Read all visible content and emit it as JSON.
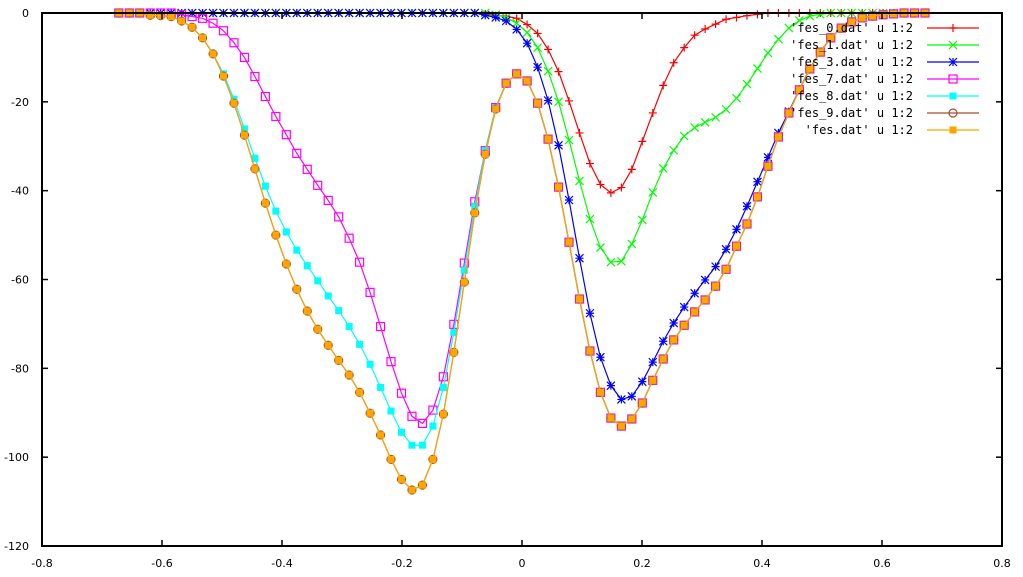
{
  "chart_data": {
    "type": "line",
    "title": "",
    "xlabel": "",
    "ylabel": "",
    "xlim": [
      -0.8,
      0.8
    ],
    "ylim": [
      -120,
      0
    ],
    "xticks": [
      -0.8,
      -0.6,
      -0.4,
      -0.2,
      0,
      0.2,
      0.4,
      0.6,
      0.8
    ],
    "xtick_labels": [
      "-0.8",
      "-0.6",
      "-0.4",
      "-0.2",
      "0",
      "0.2",
      "0.4",
      "0.6",
      "0.8"
    ],
    "yticks": [
      0,
      -20,
      -40,
      -60,
      -80,
      -100,
      -120
    ],
    "ytick_labels": [
      "0",
      "-20",
      "-40",
      "-60",
      "-80",
      "-100",
      "-120"
    ],
    "grid": false,
    "legend_position": "top-right",
    "x_start": -0.672,
    "x_step": 0.01745,
    "series": [
      {
        "name": "'fes_0.dat' u 1:2",
        "color": "#ff0000",
        "marker": "plus",
        "values": [
          0,
          0,
          0,
          0,
          0,
          0,
          0,
          0,
          0,
          0,
          0,
          0,
          0,
          0,
          0,
          0,
          0,
          0,
          0,
          0,
          0,
          0,
          0,
          0,
          0,
          0,
          0,
          0,
          0,
          0,
          0,
          0,
          0,
          0,
          0,
          -0.2,
          -0.6,
          -0.7,
          -1.2,
          -2.6,
          -4.6,
          -8.2,
          -13.2,
          -19.8,
          -27,
          -33.9,
          -38.6,
          -40.5,
          -39.3,
          -35.2,
          -28.9,
          -22.5,
          -16.3,
          -11.2,
          -7.8,
          -5,
          -3.6,
          -2.5,
          -1.4,
          -1,
          -0.6,
          -0.3,
          0,
          0,
          0,
          0,
          0,
          0,
          0,
          0,
          0,
          0,
          0,
          0,
          0,
          0,
          0,
          0
        ]
      },
      {
        "name": "'fes_1.dat' u 1:2",
        "color": "#00ff00",
        "marker": "cross",
        "values": [
          0,
          0,
          0,
          0,
          0,
          0,
          0,
          0,
          0,
          0,
          0,
          0,
          0,
          0,
          0,
          0,
          0,
          0,
          0,
          0,
          0,
          0,
          0,
          0,
          0,
          0,
          0,
          0,
          0,
          0,
          0,
          0,
          0,
          0,
          0,
          0,
          -0.4,
          -1,
          -2.3,
          -4.4,
          -7.8,
          -13.1,
          -20,
          -28.6,
          -37.8,
          -46.4,
          -52.8,
          -56.1,
          -55.9,
          -52,
          -46.6,
          -40.4,
          -35,
          -30.9,
          -27.7,
          -25.8,
          -24.6,
          -23.5,
          -21.7,
          -19.2,
          -16,
          -12.5,
          -9,
          -5.9,
          -3.4,
          -1.7,
          -0.7,
          -0.3,
          0,
          0,
          0,
          0,
          0,
          0,
          0,
          0,
          0,
          0
        ]
      },
      {
        "name": "'fes_3.dat' u 1:2",
        "color": "#0000ff",
        "marker": "star",
        "values": [
          0,
          0,
          0,
          0,
          0,
          0,
          0,
          0,
          0,
          0,
          0,
          0,
          0,
          0,
          0,
          0,
          0,
          0,
          0,
          0,
          0,
          0,
          0,
          0,
          0,
          0,
          0,
          0,
          0,
          0,
          0,
          0,
          0,
          0,
          0,
          -0.5,
          -1,
          -1.8,
          -3.7,
          -6.8,
          -12.2,
          -19.7,
          -29.8,
          -42.1,
          -55.2,
          -67.6,
          -77.5,
          -83.9,
          -87,
          -86.3,
          -83,
          -78.6,
          -73.9,
          -69.8,
          -66.2,
          -63.1,
          -60.1,
          -57.1,
          -53.2,
          -48.7,
          -43.5,
          -38,
          -32.5,
          -27,
          -22.2,
          -17.2,
          -12.5,
          -8.7,
          -5.6,
          -3.4,
          -2,
          -1.1,
          -0.7,
          -0.4,
          -0.2,
          0,
          0,
          0
        ]
      },
      {
        "name": "'fes_7.dat' u 1:2",
        "color": "#ff00ff",
        "marker": "open-square",
        "values": [
          0,
          0,
          0,
          0,
          0,
          0,
          -0.4,
          -0.8,
          -1.2,
          -2.3,
          -4,
          -6.7,
          -10,
          -14.3,
          -18.8,
          -23.3,
          -27.4,
          -31.6,
          -35.2,
          -38.8,
          -42.2,
          -45.9,
          -50.7,
          -56.1,
          -62.9,
          -70.6,
          -78.5,
          -85.6,
          -90.8,
          -92.4,
          -89.4,
          -81.9,
          -70.1,
          -56.3,
          -42.5,
          -31,
          -21.3,
          -15.8,
          -13.7,
          -15.3,
          -20.3,
          -28.4,
          -39.2,
          -51.6,
          -64.4,
          -76.1,
          -85.4,
          -91.2,
          -93,
          -91.4,
          -87.8,
          -82.7,
          -77.9,
          -73.6,
          -70.3,
          -67.3,
          -64.6,
          -61.5,
          -57.7,
          -52.5,
          -47.5,
          -41.4,
          -34.5,
          -27.9,
          -22.5,
          -17.3,
          -12.6,
          -8.8,
          -5.6,
          -3.4,
          -2,
          -1.1,
          -0.7,
          -0.4,
          -0.2,
          0,
          0,
          0
        ]
      },
      {
        "name": "'fes_8.dat' u 1:2",
        "color": "#00ffff",
        "marker": "filled-square",
        "values": [
          0,
          0,
          0,
          -0.5,
          -0.6,
          -0.8,
          -1.8,
          -3.2,
          -5.6,
          -9.2,
          -13.7,
          -19.4,
          -26.1,
          -32.7,
          -39,
          -44.6,
          -49.3,
          -53.4,
          -56.9,
          -60.3,
          -63.7,
          -67,
          -70.6,
          -74.6,
          -79.1,
          -84.3,
          -89.6,
          -94.4,
          -97.3,
          -97.3,
          -93,
          -84.3,
          -71.9,
          -57.9,
          -43.5,
          -31,
          -21.3,
          -15.8,
          -13.7,
          -15.3,
          -20.3,
          -28.4,
          -39.2,
          -51.6,
          -64.4,
          -76.1,
          -85.4,
          -91.2,
          -93,
          -91.4,
          -87.8,
          -82.7,
          -77.9,
          -73.6,
          -70.3,
          -67.3,
          -64.6,
          -61.5,
          -57.7,
          -52.5,
          -47.5,
          -41.4,
          -34.5,
          -27.9,
          -22.5,
          -17.3,
          -12.6,
          -8.8,
          -5.6,
          -3.4,
          -2,
          -1.1,
          -0.7,
          -0.4,
          -0.2,
          0,
          0,
          0
        ]
      },
      {
        "name": "'fes_9.dat' u 1:2",
        "color": "#a0522d",
        "marker": "open-circle",
        "values": [
          0,
          0,
          0,
          -0.5,
          -0.6,
          -0.8,
          -1.8,
          -3.2,
          -5.6,
          -9.2,
          -14.2,
          -20.3,
          -27.5,
          -35.1,
          -42.8,
          -50,
          -56.5,
          -62.2,
          -67.1,
          -71.2,
          -74.8,
          -78.2,
          -81.5,
          -85.4,
          -90.1,
          -95,
          -100.5,
          -105,
          -107.4,
          -106.3,
          -100.5,
          -90.3,
          -76.4,
          -60.6,
          -45,
          -31.8,
          -21.6,
          -15.8,
          -13.7,
          -15.3,
          -20.3,
          -28.4,
          -39.2,
          -51.6,
          -64.4,
          -76.1,
          -85.4,
          -91.2,
          -93,
          -91.4,
          -87.8,
          -82.7,
          -77.9,
          -73.6,
          -70.3,
          -67.3,
          -64.6,
          -61.5,
          -57.7,
          -52.5,
          -47.5,
          -41.4,
          -34.5,
          -27.9,
          -22.5,
          -17.3,
          -12.6,
          -8.8,
          -5.6,
          -3.4,
          -2,
          -1.1,
          -0.7,
          -0.4,
          -0.2,
          0,
          0,
          0
        ]
      },
      {
        "name": "'fes.dat' u 1:2",
        "color": "#ffa500",
        "marker": "filled-square",
        "values": [
          0,
          0,
          0,
          -0.5,
          -0.6,
          -0.8,
          -1.8,
          -3.2,
          -5.6,
          -9.2,
          -14.2,
          -20.3,
          -27.5,
          -35.1,
          -42.8,
          -50,
          -56.5,
          -62.2,
          -67.1,
          -71.2,
          -74.8,
          -78.2,
          -81.5,
          -85.4,
          -90.1,
          -95,
          -100.5,
          -105,
          -107.4,
          -106.3,
          -100.5,
          -90.3,
          -76.4,
          -60.6,
          -45,
          -31.8,
          -21.6,
          -15.8,
          -13.7,
          -15.3,
          -20.3,
          -28.4,
          -39.2,
          -51.6,
          -64.4,
          -76.1,
          -85.4,
          -91.2,
          -93,
          -91.4,
          -87.8,
          -82.7,
          -77.9,
          -73.6,
          -70.3,
          -67.3,
          -64.6,
          -61.5,
          -57.7,
          -52.5,
          -47.5,
          -41.4,
          -34.5,
          -27.9,
          -22.5,
          -17.3,
          -12.6,
          -8.8,
          -5.6,
          -3.4,
          -2,
          -1.1,
          -0.7,
          -0.4,
          -0.2,
          0,
          0,
          0
        ]
      }
    ]
  }
}
